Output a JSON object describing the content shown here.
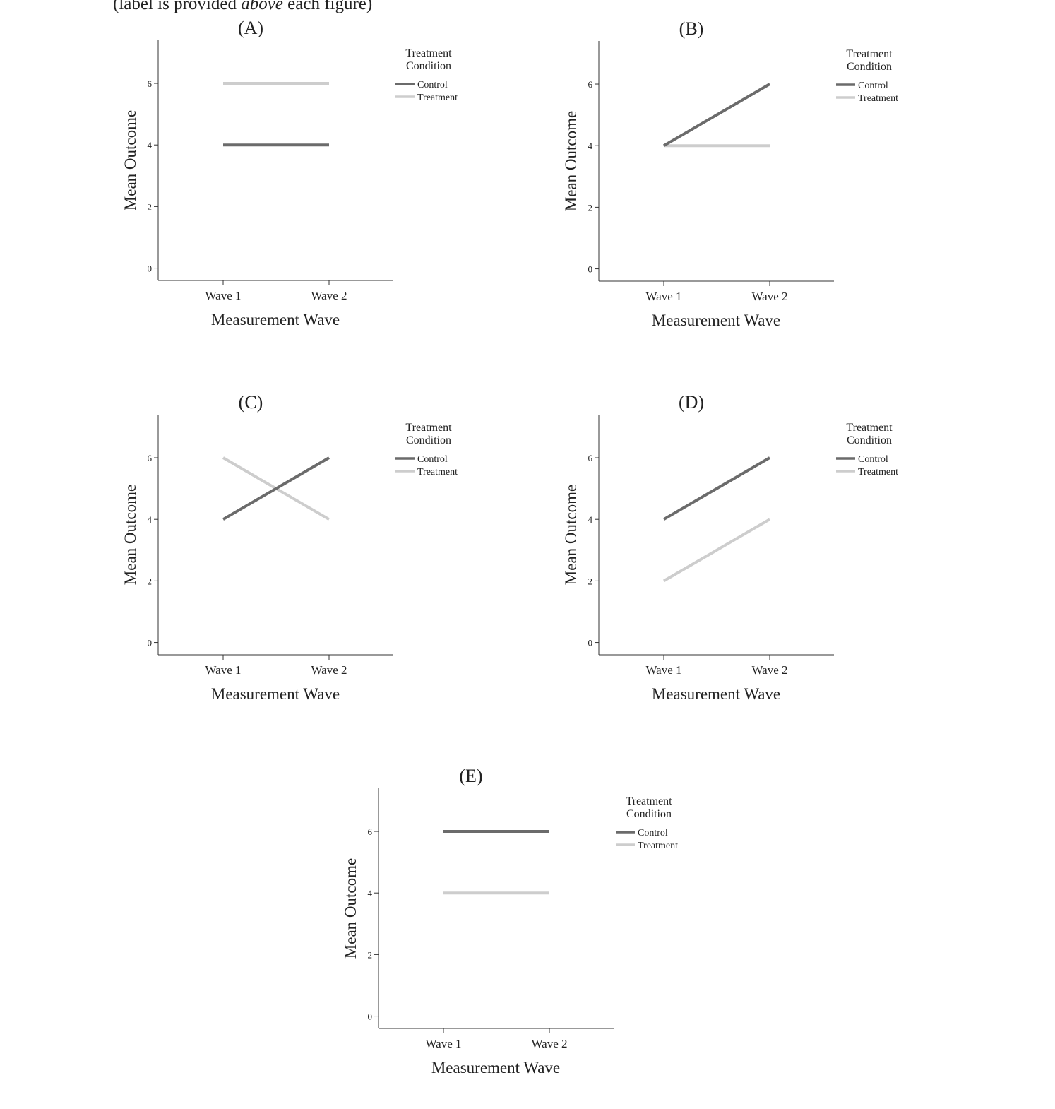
{
  "caption": {
    "before": "(label is provided ",
    "italic": "above",
    "after": " each figure)"
  },
  "colors": {
    "control": "#6b6b6b",
    "treatment": "#cdcdcd",
    "axis": "#333333",
    "text": "#222222"
  },
  "chart_data": [
    {
      "id": "A",
      "type": "line",
      "title": "(A)",
      "xlabel": "Measurement Wave",
      "ylabel": "Mean Outcome",
      "categories": [
        "Wave 1",
        "Wave 2"
      ],
      "yticks": [
        0,
        2,
        4,
        6
      ],
      "ylim": [
        -0.4,
        7.4
      ],
      "legend_title": [
        "Treatment",
        "Condition"
      ],
      "series": [
        {
          "name": "Control",
          "values": [
            4,
            4
          ]
        },
        {
          "name": "Treatment",
          "values": [
            6,
            6
          ]
        }
      ]
    },
    {
      "id": "B",
      "type": "line",
      "title": "(B)",
      "xlabel": "Measurement Wave",
      "ylabel": "Mean Outcome",
      "categories": [
        "Wave 1",
        "Wave 2"
      ],
      "yticks": [
        0,
        2,
        4,
        6
      ],
      "ylim": [
        -0.4,
        7.4
      ],
      "legend_title": [
        "Treatment",
        "Condition"
      ],
      "series": [
        {
          "name": "Control",
          "values": [
            4,
            6
          ]
        },
        {
          "name": "Treatment",
          "values": [
            4,
            4
          ]
        }
      ]
    },
    {
      "id": "C",
      "type": "line",
      "title": "(C)",
      "xlabel": "Measurement Wave",
      "ylabel": "Mean Outcome",
      "categories": [
        "Wave 1",
        "Wave 2"
      ],
      "yticks": [
        0,
        2,
        4,
        6
      ],
      "ylim": [
        -0.4,
        7.4
      ],
      "legend_title": [
        "Treatment",
        "Condition"
      ],
      "series": [
        {
          "name": "Control",
          "values": [
            4,
            6
          ]
        },
        {
          "name": "Treatment",
          "values": [
            6,
            4
          ]
        }
      ]
    },
    {
      "id": "D",
      "type": "line",
      "title": "(D)",
      "xlabel": "Measurement Wave",
      "ylabel": "Mean Outcome",
      "categories": [
        "Wave 1",
        "Wave 2"
      ],
      "yticks": [
        0,
        2,
        4,
        6
      ],
      "ylim": [
        -0.4,
        7.4
      ],
      "legend_title": [
        "Treatment",
        "Condition"
      ],
      "series": [
        {
          "name": "Control",
          "values": [
            4,
            6
          ]
        },
        {
          "name": "Treatment",
          "values": [
            2,
            4
          ]
        }
      ]
    },
    {
      "id": "E",
      "type": "line",
      "title": "(E)",
      "xlabel": "Measurement Wave",
      "ylabel": "Mean Outcome",
      "categories": [
        "Wave 1",
        "Wave 2"
      ],
      "yticks": [
        0,
        2,
        4,
        6
      ],
      "ylim": [
        -0.4,
        7.4
      ],
      "legend_title": [
        "Treatment",
        "Condition"
      ],
      "series": [
        {
          "name": "Control",
          "values": [
            6,
            6
          ]
        },
        {
          "name": "Treatment",
          "values": [
            4,
            4
          ]
        }
      ]
    }
  ]
}
